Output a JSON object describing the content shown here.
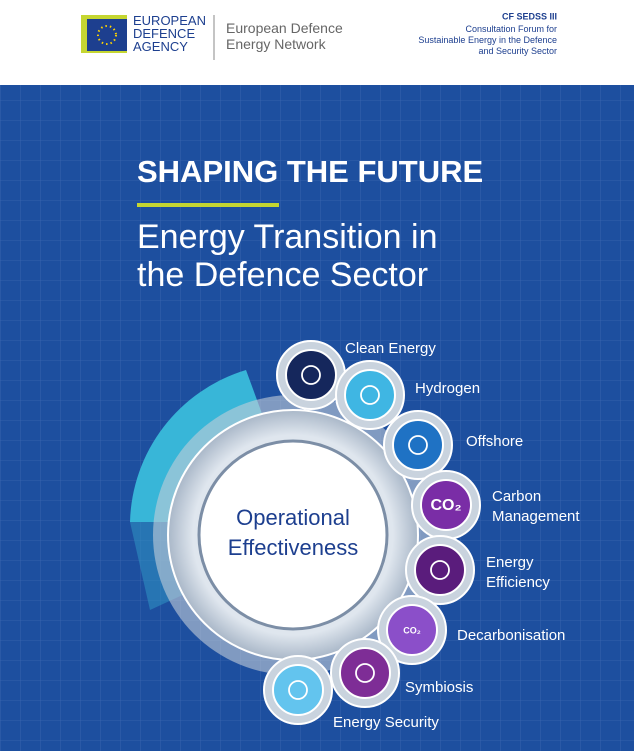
{
  "header": {
    "logo_lines": [
      "EUROPEAN",
      "DEFENCE",
      "AGENCY"
    ],
    "network_lines": [
      "European Defence",
      "Energy Network"
    ],
    "forum_title": "CF SEDSS III",
    "forum_lines": [
      "Consultation Forum for",
      "Sustainable Energy in the Defence",
      "and Security Sector"
    ]
  },
  "hero": {
    "title": "SHAPING THE FUTURE",
    "subtitle_lines": [
      "Energy Transition in",
      "the Defence Sector"
    ],
    "center_lines": [
      "Operational",
      "Effectiveness"
    ]
  },
  "items": [
    {
      "label_lines": [
        "Clean Energy"
      ]
    },
    {
      "label_lines": [
        "Hydrogen"
      ]
    },
    {
      "label_lines": [
        "Offshore"
      ]
    },
    {
      "label_lines": [
        "Carbon",
        "Management"
      ],
      "icon_text": "CO₂"
    },
    {
      "label_lines": [
        "Energy",
        "Efficiency"
      ]
    },
    {
      "label_lines": [
        "Decarbonisation"
      ],
      "icon_text": "CO₂"
    },
    {
      "label_lines": [
        "Symbiosis"
      ]
    },
    {
      "label_lines": [
        "Energy Security"
      ]
    }
  ]
}
